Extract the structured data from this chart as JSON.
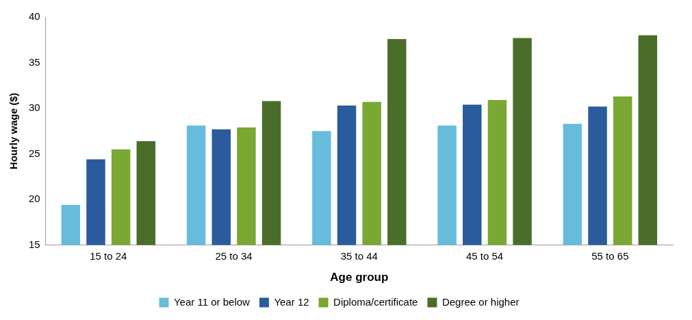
{
  "chart_data": {
    "type": "bar",
    "xlabel": "Age group",
    "ylabel": "Hourly wage ($)",
    "categories": [
      "15 to 24",
      "25 to 34",
      "35 to 44",
      "45 to 54",
      "55 to 65"
    ],
    "series": [
      {
        "name": "Year 11 or below",
        "color": "#67bcdb",
        "values": [
          19.4,
          28.1,
          27.5,
          28.1,
          28.3
        ]
      },
      {
        "name": "Year 12",
        "color": "#2a5b9c",
        "values": [
          24.4,
          27.7,
          30.3,
          30.4,
          30.2
        ]
      },
      {
        "name": "Diploma/certificate",
        "color": "#7ba733",
        "values": [
          25.5,
          27.9,
          30.7,
          30.9,
          31.3
        ]
      },
      {
        "name": "Degree or higher",
        "color": "#4a6e2a",
        "values": [
          26.4,
          30.8,
          37.6,
          37.7,
          38.0
        ]
      }
    ],
    "ylim": [
      15,
      40
    ],
    "yticks": [
      15,
      20,
      25,
      30,
      35,
      40
    ],
    "grid": false,
    "legend": "bottom"
  }
}
